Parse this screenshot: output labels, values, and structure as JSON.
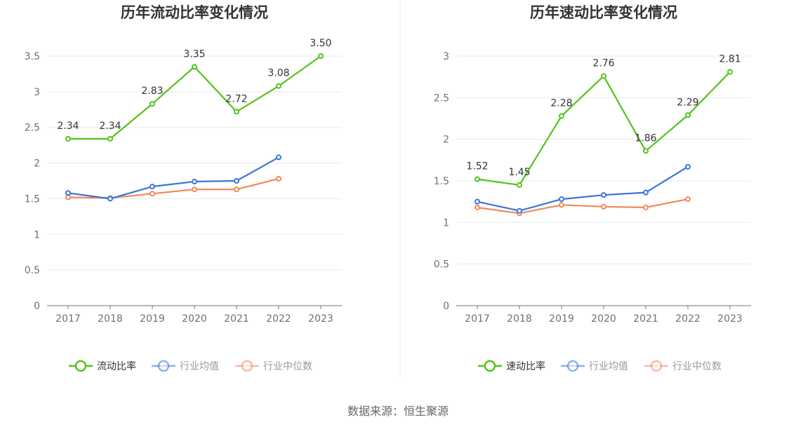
{
  "colors": {
    "green": "#52c41a",
    "blue": "#3a75d9",
    "orange": "#f08858",
    "axis": "#6e7079",
    "grid": "#e6e9f0",
    "divider": "#eeeeee"
  },
  "source_label": "数据来源：恒生聚源",
  "chart_data": [
    {
      "type": "line",
      "title": "历年流动比率变化情况",
      "categories": [
        "2017",
        "2018",
        "2019",
        "2020",
        "2021",
        "2022",
        "2023"
      ],
      "ylim": [
        0,
        3.5
      ],
      "yticks": [
        "0",
        "0.5",
        "1",
        "1.5",
        "2",
        "2.5",
        "3",
        "3.5"
      ],
      "grid": true,
      "legend_position": "bottom",
      "series": [
        {
          "name": "流动比率",
          "color": "#52c41a",
          "labeled": true,
          "values": [
            2.34,
            2.34,
            2.83,
            3.35,
            2.72,
            3.08,
            3.5
          ],
          "labels": [
            "2.34",
            "2.34",
            "2.83",
            "3.35",
            "2.72",
            "3.08",
            "3.50"
          ]
        },
        {
          "name": "行业均值",
          "color": "#3a75d9",
          "labeled": false,
          "values": [
            1.58,
            1.5,
            1.67,
            1.74,
            1.75,
            2.08,
            null
          ]
        },
        {
          "name": "行业中位数",
          "color": "#f08858",
          "labeled": false,
          "values": [
            1.52,
            1.51,
            1.57,
            1.63,
            1.63,
            1.78,
            null
          ]
        }
      ]
    },
    {
      "type": "line",
      "title": "历年速动比率变化情况",
      "categories": [
        "2017",
        "2018",
        "2019",
        "2020",
        "2021",
        "2022",
        "2023"
      ],
      "ylim": [
        0,
        3
      ],
      "yticks": [
        "0",
        "0.5",
        "1",
        "1.5",
        "2",
        "2.5",
        "3"
      ],
      "grid": true,
      "legend_position": "bottom",
      "series": [
        {
          "name": "速动比率",
          "color": "#52c41a",
          "labeled": true,
          "values": [
            1.52,
            1.45,
            2.28,
            2.76,
            1.86,
            2.29,
            2.81
          ],
          "labels": [
            "1.52",
            "1.45",
            "2.28",
            "2.76",
            "1.86",
            "2.29",
            "2.81"
          ]
        },
        {
          "name": "行业均值",
          "color": "#3a75d9",
          "labeled": false,
          "values": [
            1.25,
            1.14,
            1.28,
            1.33,
            1.36,
            1.67,
            null
          ]
        },
        {
          "name": "行业中位数",
          "color": "#f08858",
          "labeled": false,
          "values": [
            1.18,
            1.11,
            1.21,
            1.19,
            1.18,
            1.28,
            null
          ]
        }
      ]
    }
  ]
}
